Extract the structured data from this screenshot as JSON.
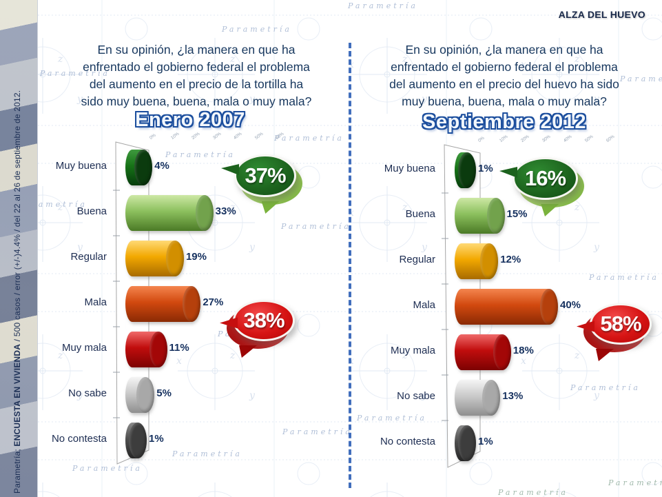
{
  "header": {
    "title": "ALZA DEL HUEVO"
  },
  "source_note": {
    "prefix": "Parametría; ",
    "emphasis": "ENCUESTA EN VIVIENDA",
    "suffix": " / 500 casos / error (+/-)4.4% / del 22 al 26 de septiembre de 2012."
  },
  "watermark": {
    "text": "Parametría"
  },
  "decor": {
    "letters": [
      "x",
      "y",
      "z"
    ]
  },
  "colors": {
    "divider": "#3767b9",
    "question_text": "#17375e",
    "title_outline": "#1d4f9e",
    "bubble_green": "#1c621d",
    "bubble_green_echo": "#8dc63f",
    "bubble_red": "#d61414",
    "bubble_red_echo": "#9c0606",
    "bars": [
      {
        "name": "Muy buena",
        "top": "#3f9a3f",
        "mid": "#177317",
        "bottom": "#063c0c",
        "cap": "#0b3b0e"
      },
      {
        "name": "Buena",
        "top": "#cde8a5",
        "mid": "#8cc05e",
        "bottom": "#4b7a26",
        "cap": "#72a24c"
      },
      {
        "name": "Regular",
        "top": "#ffd976",
        "mid": "#f2a800",
        "bottom": "#a86b00",
        "cap": "#d28f00"
      },
      {
        "name": "Mala",
        "top": "#f4854e",
        "mid": "#d2490f",
        "bottom": "#8a2a04",
        "cap": "#b5400c"
      },
      {
        "name": "Muy mala",
        "top": "#ef6a6a",
        "mid": "#c00d0d",
        "bottom": "#7c0202",
        "cap": "#a30707"
      },
      {
        "name": "No sabe",
        "top": "#f5f5f5",
        "mid": "#cacaca",
        "bottom": "#8f8f8f",
        "cap": "#a8a8a8"
      },
      {
        "name": "No contesta",
        "top": "#8a8a8a",
        "mid": "#4f4f4f",
        "bottom": "#262626",
        "cap": "#3d3d3d"
      }
    ]
  },
  "chart_data": [
    {
      "type": "bar",
      "orientation": "horizontal",
      "title": "Enero 2007",
      "question_lines": [
        "En su opinión, ¿la manera en que ha",
        "enfrentado el gobierno federal el problema",
        "del aumento en el precio de la tortilla ha",
        "sido muy buena, buena, mala o muy mala?"
      ],
      "categories": [
        "Muy buena",
        "Buena",
        "Regular",
        "Mala",
        "Muy mala",
        "No sabe",
        "No contesta"
      ],
      "values": [
        4,
        33,
        19,
        27,
        11,
        5,
        1
      ],
      "unit": "%",
      "axis": {
        "range": [
          0,
          60
        ],
        "ticks": [
          "0%",
          "10%",
          "20%",
          "30%",
          "40%",
          "50%",
          "60%"
        ]
      },
      "callouts": [
        {
          "label": "37%",
          "type": "positive",
          "color": "#1c621d"
        },
        {
          "label": "38%",
          "type": "negative",
          "color": "#d61414"
        }
      ]
    },
    {
      "type": "bar",
      "orientation": "horizontal",
      "title": "Septiembre 2012",
      "question_lines": [
        "En su opinión, ¿la manera en que ha",
        "enfrentado el gobierno federal el problema",
        "del aumento en el precio del huevo ha sido",
        "muy buena, buena, mala o muy mala?"
      ],
      "categories": [
        "Muy buena",
        "Buena",
        "Regular",
        "Mala",
        "Muy mala",
        "No sabe",
        "No contesta"
      ],
      "values": [
        1,
        15,
        12,
        40,
        18,
        13,
        1
      ],
      "unit": "%",
      "axis": {
        "range": [
          0,
          60
        ],
        "ticks": [
          "0%",
          "10%",
          "20%",
          "30%",
          "40%",
          "50%",
          "60%"
        ]
      },
      "callouts": [
        {
          "label": "16%",
          "type": "positive",
          "color": "#1c621d"
        },
        {
          "label": "58%",
          "type": "negative",
          "color": "#d61414"
        }
      ]
    }
  ]
}
